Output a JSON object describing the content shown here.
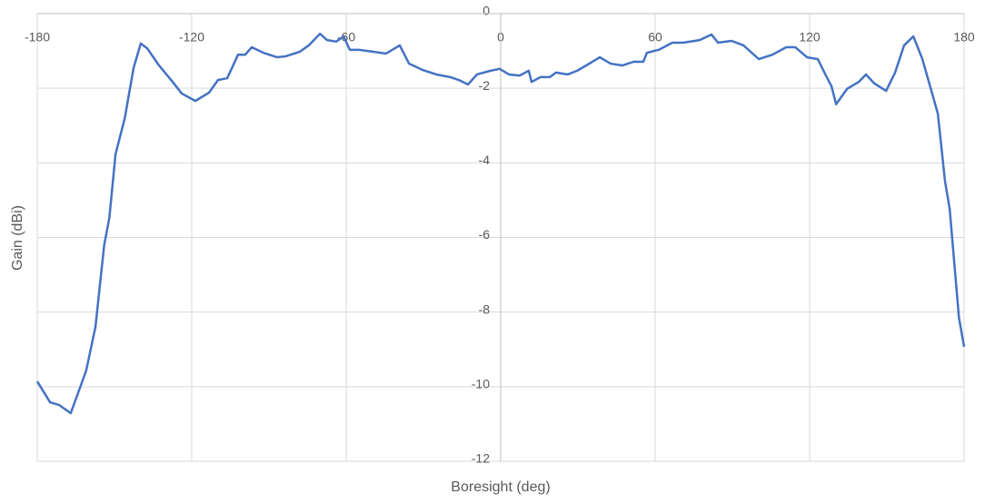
{
  "chart_data": {
    "type": "line",
    "x_label": "Boresight (deg)",
    "y_label": "Gain (dBi)",
    "x": [
      -180,
      -175,
      -171.5,
      -167,
      -161,
      -157.4,
      -154,
      -152,
      -149.6,
      -146,
      -142.6,
      -139.8,
      -137.3,
      -132.7,
      -127.4,
      -123.9,
      -118.6,
      -113.3,
      -109.8,
      -106.2,
      -102,
      -99.2,
      -96.7,
      -92.1,
      -86.8,
      -83.3,
      -78,
      -74.5,
      -70.2,
      -67.4,
      -63.9,
      -61,
      -58.6,
      -55,
      -49.8,
      -44.5,
      -39.2,
      -35.6,
      -30.3,
      -25,
      -19.7,
      -16.2,
      -12.7,
      -9.2,
      -3.9,
      -0.4,
      3.2,
      7.4,
      10.9,
      12,
      15.5,
      19.1,
      21.5,
      26.1,
      29.7,
      33.2,
      38.5,
      42.7,
      47.3,
      51.6,
      55.4,
      56.8,
      61.4,
      66.7,
      70.9,
      77.3,
      81.9,
      84.4,
      89.7,
      94.3,
      100.3,
      105.6,
      110.9,
      114.4,
      119,
      123.2,
      126.1,
      128.5,
      130.3,
      134.5,
      139.1,
      141.9,
      145.1,
      149.7,
      153.2,
      156.7,
      160.3,
      163.8,
      167.3,
      169.8,
      172.6,
      174.4,
      176.2,
      178,
      180
    ],
    "values": [
      -9.86,
      -10.42,
      -10.49,
      -10.71,
      -9.57,
      -8.4,
      -6.2,
      -5.48,
      -3.77,
      -2.8,
      -1.46,
      -0.8,
      -0.93,
      -1.39,
      -1.83,
      -2.14,
      -2.34,
      -2.12,
      -1.78,
      -1.73,
      -1.1,
      -1.1,
      -0.9,
      -1.05,
      -1.17,
      -1.14,
      -1.02,
      -0.85,
      -0.54,
      -0.71,
      -0.75,
      -0.61,
      -0.97,
      -0.97,
      -1.02,
      -1.07,
      -0.85,
      -1.34,
      -1.51,
      -1.63,
      -1.7,
      -1.78,
      -1.9,
      -1.63,
      -1.53,
      -1.48,
      -1.63,
      -1.66,
      -1.53,
      -1.83,
      -1.7,
      -1.7,
      -1.58,
      -1.63,
      -1.53,
      -1.39,
      -1.17,
      -1.34,
      -1.39,
      -1.29,
      -1.29,
      -1.05,
      -0.97,
      -0.78,
      -0.78,
      -0.71,
      -0.56,
      -0.78,
      -0.73,
      -0.85,
      -1.22,
      -1.1,
      -0.9,
      -0.9,
      -1.17,
      -1.22,
      -1.63,
      -1.95,
      -2.43,
      -2.02,
      -1.83,
      -1.63,
      -1.87,
      -2.07,
      -1.58,
      -0.85,
      -0.61,
      -1.22,
      -2.07,
      -2.68,
      -4.5,
      -5.23,
      -6.69,
      -8.15,
      -8.93
    ],
    "color": "#4472c4",
    "xlim": [
      -180,
      180
    ],
    "xticks": [
      -180,
      -120,
      -60,
      0,
      60,
      120,
      180
    ],
    "ylim": [
      -12,
      0
    ],
    "yticks": [
      0,
      -2,
      -4,
      -6,
      -8,
      -10,
      -12
    ],
    "grid": true
  }
}
